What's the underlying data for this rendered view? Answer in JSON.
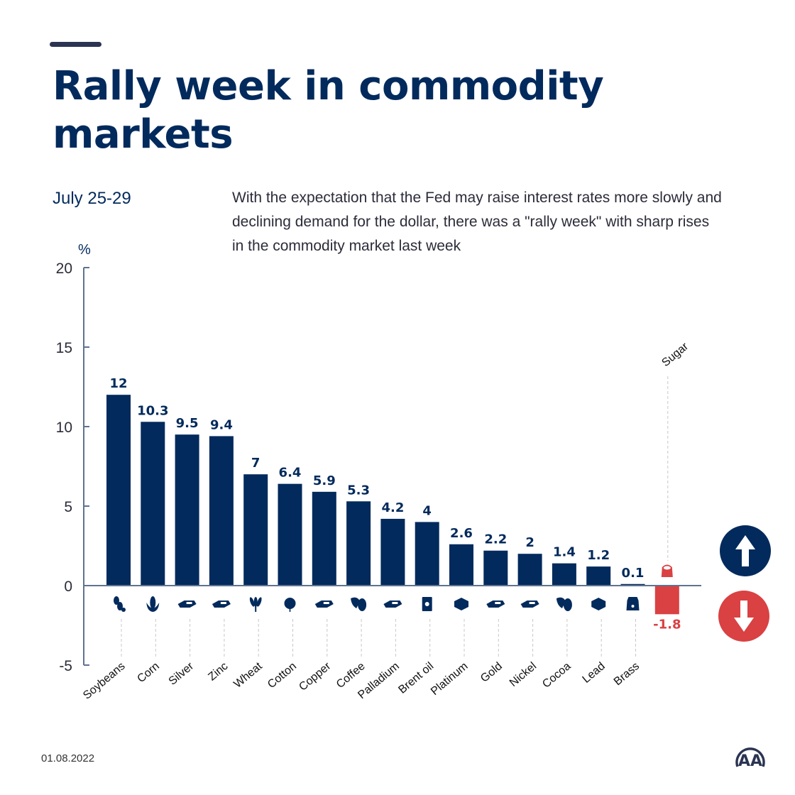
{
  "header": {
    "title": "Rally week in commodity markets",
    "date_range": "July 25-29",
    "description": "With the expectation that the Fed may raise interest rates more slowly and declining demand for the dollar, there was a \"rally week\" with sharp rises in the commodity market last week"
  },
  "footer": {
    "date": "01.08.2022",
    "logo": "AA"
  },
  "legend": {
    "up_icon": "arrow-up-icon",
    "down_icon": "arrow-down-icon",
    "up_color": "#022a5c",
    "down_color": "#d94143"
  },
  "colors": {
    "positive": "#022a5c",
    "negative": "#d94143",
    "axis": "#5e7390"
  },
  "chart_data": {
    "type": "bar",
    "title": "Rally week in commodity markets",
    "subtitle": "July 25-29",
    "xlabel": "",
    "ylabel": "%",
    "ylim": [
      -5,
      20
    ],
    "yticks": [
      20,
      15,
      10,
      5,
      0,
      -5
    ],
    "grid": false,
    "categories": [
      "Soybeans",
      "Corn",
      "Silver",
      "Zinc",
      "Wheat",
      "Cotton",
      "Copper",
      "Coffee",
      "Palladium",
      "Brent oil",
      "Platinum",
      "Gold",
      "Nickel",
      "Cocoa",
      "Lead",
      "Brass",
      "Sugar"
    ],
    "values": [
      12,
      10.3,
      9.5,
      9.4,
      7,
      6.4,
      5.9,
      5.3,
      4.2,
      4,
      2.6,
      2.2,
      2,
      1.4,
      1.2,
      0.1,
      -1.8
    ],
    "value_labels": [
      "12",
      "10.3",
      "9.5",
      "9.4",
      "7",
      "6.4",
      "5.9",
      "5.3",
      "4.2",
      "4",
      "2.6",
      "2.2",
      "2",
      "1.4",
      "1.2",
      "0.1",
      "-1.8"
    ],
    "icons": [
      "soybean-icon",
      "corn-icon",
      "metal-bars-icon",
      "metal-bars-icon",
      "wheat-icon",
      "cotton-icon",
      "metal-bars-icon",
      "coffee-icon",
      "metal-bars-icon",
      "oil-barrel-icon",
      "metal-ingot-icon",
      "metal-bars-icon",
      "metal-bars-icon",
      "cocoa-icon",
      "metal-ingot-icon",
      "sack-icon",
      "sugar-sack-icon"
    ]
  }
}
